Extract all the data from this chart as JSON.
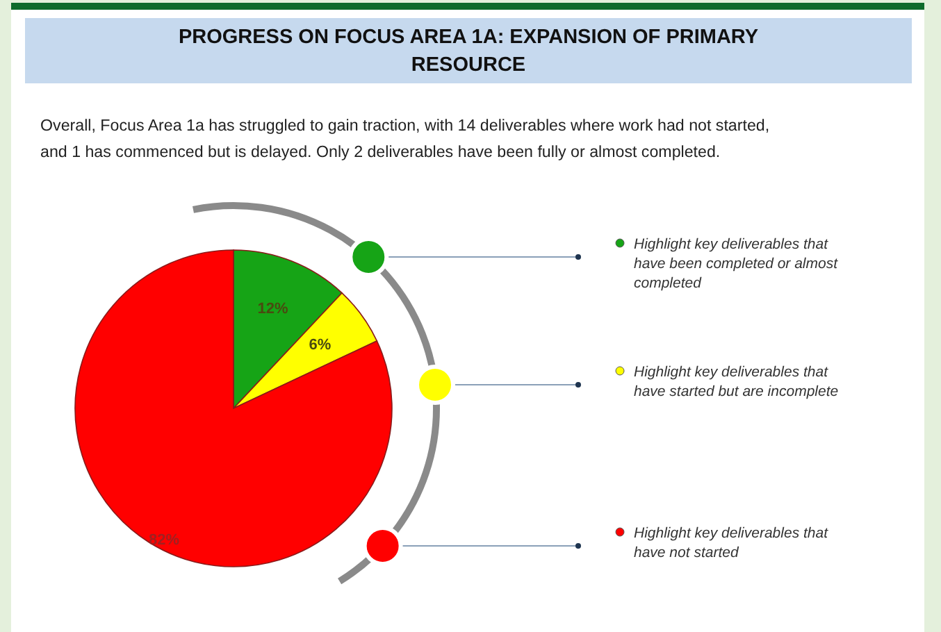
{
  "chart_data": {
    "type": "pie",
    "title": "PROGRESS ON FOCUS AREA 1A: EXPANSION OF PRIMARY RESOURCE",
    "subtitle": "Overall, Focus Area 1a has struggled to gain traction, with 14 deliverables where work had not started, and 1 has commenced but is delayed. Only 2 deliverables have been fully or almost completed.",
    "categories": [
      "Highlight key deliverables that have been completed or almost completed",
      "Highlight key deliverables that have started but are incomplete",
      "Highlight key deliverables that have not started"
    ],
    "values": [
      12,
      6,
      82
    ],
    "colors": [
      "#16a416",
      "#ffff00",
      "#ff0000"
    ],
    "value_labels": [
      "12%",
      "6%",
      "82%"
    ],
    "legend": "right"
  }
}
